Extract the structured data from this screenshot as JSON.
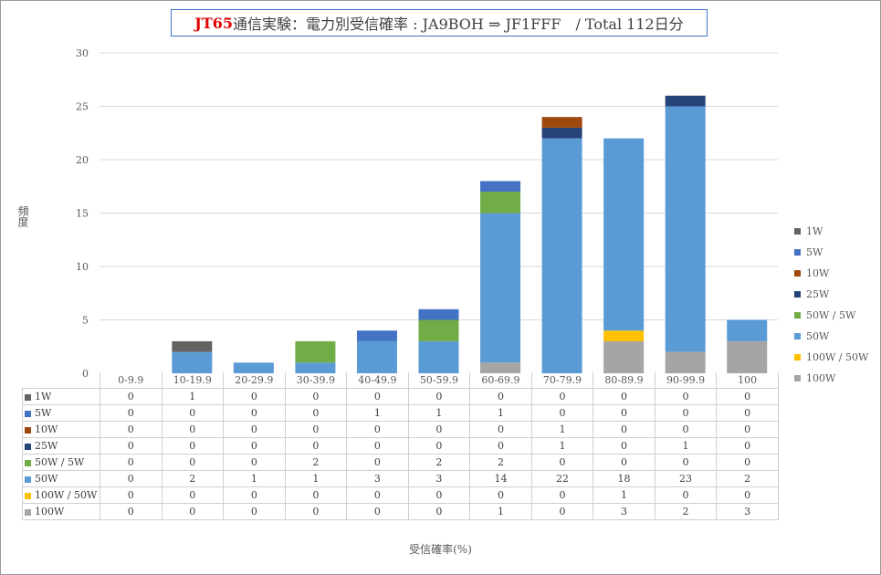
{
  "title": {
    "highlight": "JT65",
    "rest": "通信実験：電力別受信確率 : JA9BOH ⇒ JF1FFF　/ Total 112日分"
  },
  "chart_data": {
    "type": "bar",
    "stacked": true,
    "title": "JT65通信実験：電力別受信確率 : JA9BOH ⇒ JF1FFF　/ Total 112日分",
    "xlabel": "受信確率(%)",
    "ylabel": "頻度",
    "ylim": [
      0,
      30
    ],
    "yticks": [
      0,
      5,
      10,
      15,
      20,
      25,
      30
    ],
    "grid": true,
    "legend_position": "right",
    "categories": [
      "0-9.9",
      "10-19.9",
      "20-29.9",
      "30-39.9",
      "40-49.9",
      "50-59.9",
      "60-69.9",
      "70-79.9",
      "80-89.9",
      "90-99.9",
      "100"
    ],
    "series": [
      {
        "name": "100W",
        "color": "#a5a5a5",
        "values": [
          0,
          0,
          0,
          0,
          0,
          0,
          1,
          0,
          3,
          2,
          3
        ]
      },
      {
        "name": "100W / 50W",
        "color": "#ffc000",
        "values": [
          0,
          0,
          0,
          0,
          0,
          0,
          0,
          0,
          1,
          0,
          0
        ]
      },
      {
        "name": "50W",
        "color": "#5b9bd5",
        "values": [
          0,
          2,
          1,
          1,
          3,
          3,
          14,
          22,
          18,
          23,
          2
        ]
      },
      {
        "name": "50W / 5W",
        "color": "#70ad47",
        "values": [
          0,
          0,
          0,
          2,
          0,
          2,
          2,
          0,
          0,
          0,
          0
        ]
      },
      {
        "name": "25W",
        "color": "#264478",
        "values": [
          0,
          0,
          0,
          0,
          0,
          0,
          0,
          1,
          0,
          1,
          0
        ]
      },
      {
        "name": "10W",
        "color": "#9e480e",
        "values": [
          0,
          0,
          0,
          0,
          0,
          0,
          0,
          1,
          0,
          0,
          0
        ]
      },
      {
        "name": "5W",
        "color": "#4472c4",
        "values": [
          0,
          0,
          0,
          0,
          1,
          1,
          1,
          0,
          0,
          0,
          0
        ]
      },
      {
        "name": "1W",
        "color": "#636363",
        "values": [
          0,
          1,
          0,
          0,
          0,
          0,
          0,
          0,
          0,
          0,
          0
        ]
      }
    ],
    "legend_order": [
      "1W",
      "5W",
      "10W",
      "25W",
      "50W / 5W",
      "50W",
      "100W / 50W",
      "100W"
    ],
    "table_order": [
      "1W",
      "5W",
      "10W",
      "25W",
      "50W / 5W",
      "50W",
      "100W / 50W",
      "100W"
    ]
  }
}
